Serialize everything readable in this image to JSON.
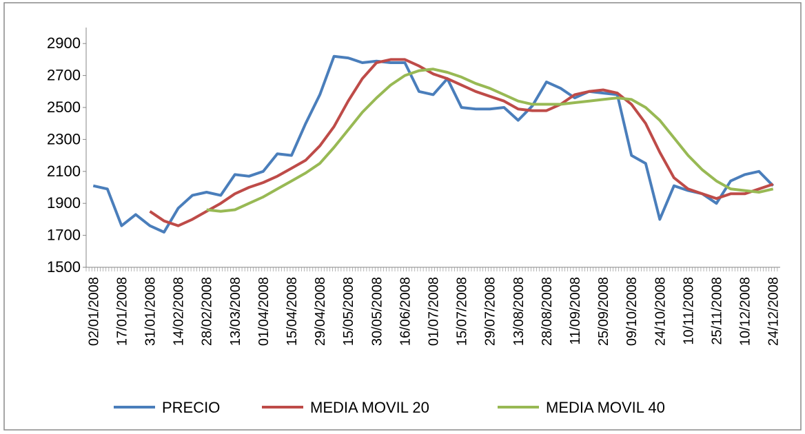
{
  "chart_data": {
    "type": "line",
    "categories": [
      "02/01/2008",
      null,
      "17/01/2008",
      null,
      "31/01/2008",
      null,
      "14/02/2008",
      null,
      "28/02/2008",
      null,
      "13/03/2008",
      null,
      "01/04/2008",
      null,
      "15/04/2008",
      null,
      "29/04/2008",
      null,
      "15/05/2008",
      null,
      "30/05/2008",
      null,
      "16/06/2008",
      null,
      "01/07/2008",
      null,
      "15/07/2008",
      null,
      "29/07/2008",
      null,
      "13/08/2008",
      null,
      "28/08/2008",
      null,
      "11/09/2008",
      null,
      "25/09/2008",
      null,
      "09/10/2008",
      null,
      "24/10/2008",
      null,
      "10/11/2008",
      null,
      "25/11/2008",
      null,
      "10/12/2008",
      null,
      "24/12/2008"
    ],
    "series": [
      {
        "name": "PRECIO",
        "color": "#4a7ebb",
        "values": [
          2010,
          1990,
          1760,
          1830,
          1760,
          1720,
          1870,
          1950,
          1970,
          1950,
          2080,
          2070,
          2100,
          2210,
          2200,
          2400,
          2580,
          2820,
          2810,
          2780,
          2790,
          2780,
          2780,
          2600,
          2580,
          2680,
          2500,
          2490,
          2490,
          2500,
          2420,
          2510,
          2660,
          2620,
          2560,
          2600,
          2590,
          2580,
          2200,
          2150,
          1800,
          2010,
          1980,
          1960,
          1900,
          2040,
          2080,
          2100,
          2010
        ]
      },
      {
        "name": "MEDIA MOVIL 20",
        "color": "#be4b48",
        "values": [
          null,
          null,
          null,
          null,
          1850,
          1790,
          1760,
          1800,
          1850,
          1900,
          1960,
          2000,
          2030,
          2070,
          2120,
          2170,
          2260,
          2380,
          2540,
          2680,
          2780,
          2800,
          2800,
          2760,
          2710,
          2680,
          2640,
          2600,
          2570,
          2540,
          2490,
          2480,
          2480,
          2520,
          2580,
          2600,
          2610,
          2590,
          2520,
          2400,
          2220,
          2060,
          1990,
          1960,
          1930,
          1960,
          1960,
          1990,
          2020
        ]
      },
      {
        "name": "MEDIA MOVIL 40",
        "color": "#98b954",
        "values": [
          null,
          null,
          null,
          null,
          null,
          null,
          null,
          null,
          1860,
          1850,
          1860,
          1900,
          1940,
          1990,
          2040,
          2090,
          2150,
          2250,
          2360,
          2470,
          2560,
          2640,
          2700,
          2730,
          2740,
          2720,
          2690,
          2650,
          2620,
          2580,
          2540,
          2520,
          2520,
          2520,
          2530,
          2540,
          2550,
          2560,
          2550,
          2500,
          2420,
          2310,
          2200,
          2110,
          2040,
          1990,
          1980,
          1970,
          1990
        ]
      }
    ],
    "ylim": [
      1500,
      3000
    ],
    "yticks": [
      1500,
      1700,
      1900,
      2100,
      2300,
      2500,
      2700,
      2900
    ],
    "legend": "bottom"
  }
}
